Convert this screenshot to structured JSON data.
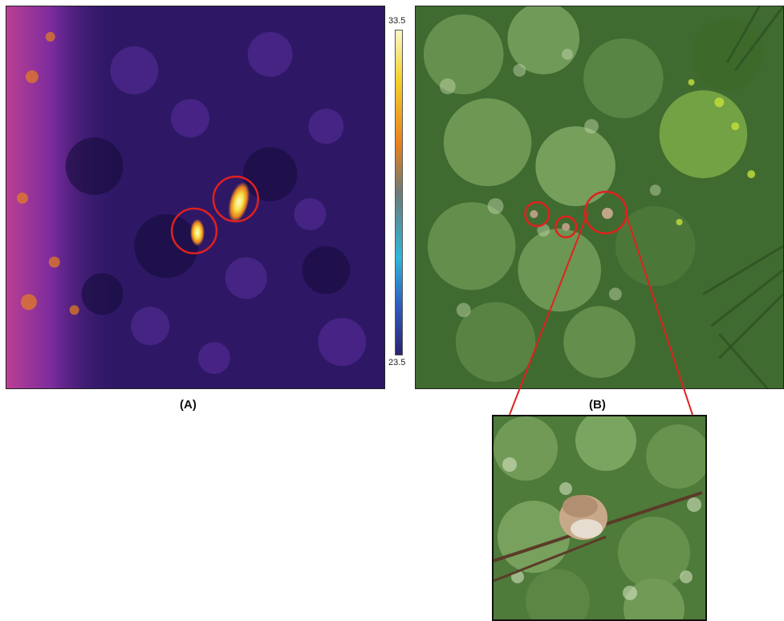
{
  "panels": {
    "a_label": "(A)",
    "b_label": "(B)"
  },
  "colorbar": {
    "max": "33.5",
    "min": "23.5",
    "gradient": [
      "#fbf7c8",
      "#f5d12a",
      "#e8801e",
      "#6d7a78",
      "#2fb7d8",
      "#2d5cc0",
      "#2b2370"
    ]
  },
  "colors": {
    "highlight_circle": "#e0211f",
    "thermal_background": "#2e1866",
    "thermal_hot": "#f7e14a",
    "foliage": "#4e7a3a"
  }
}
